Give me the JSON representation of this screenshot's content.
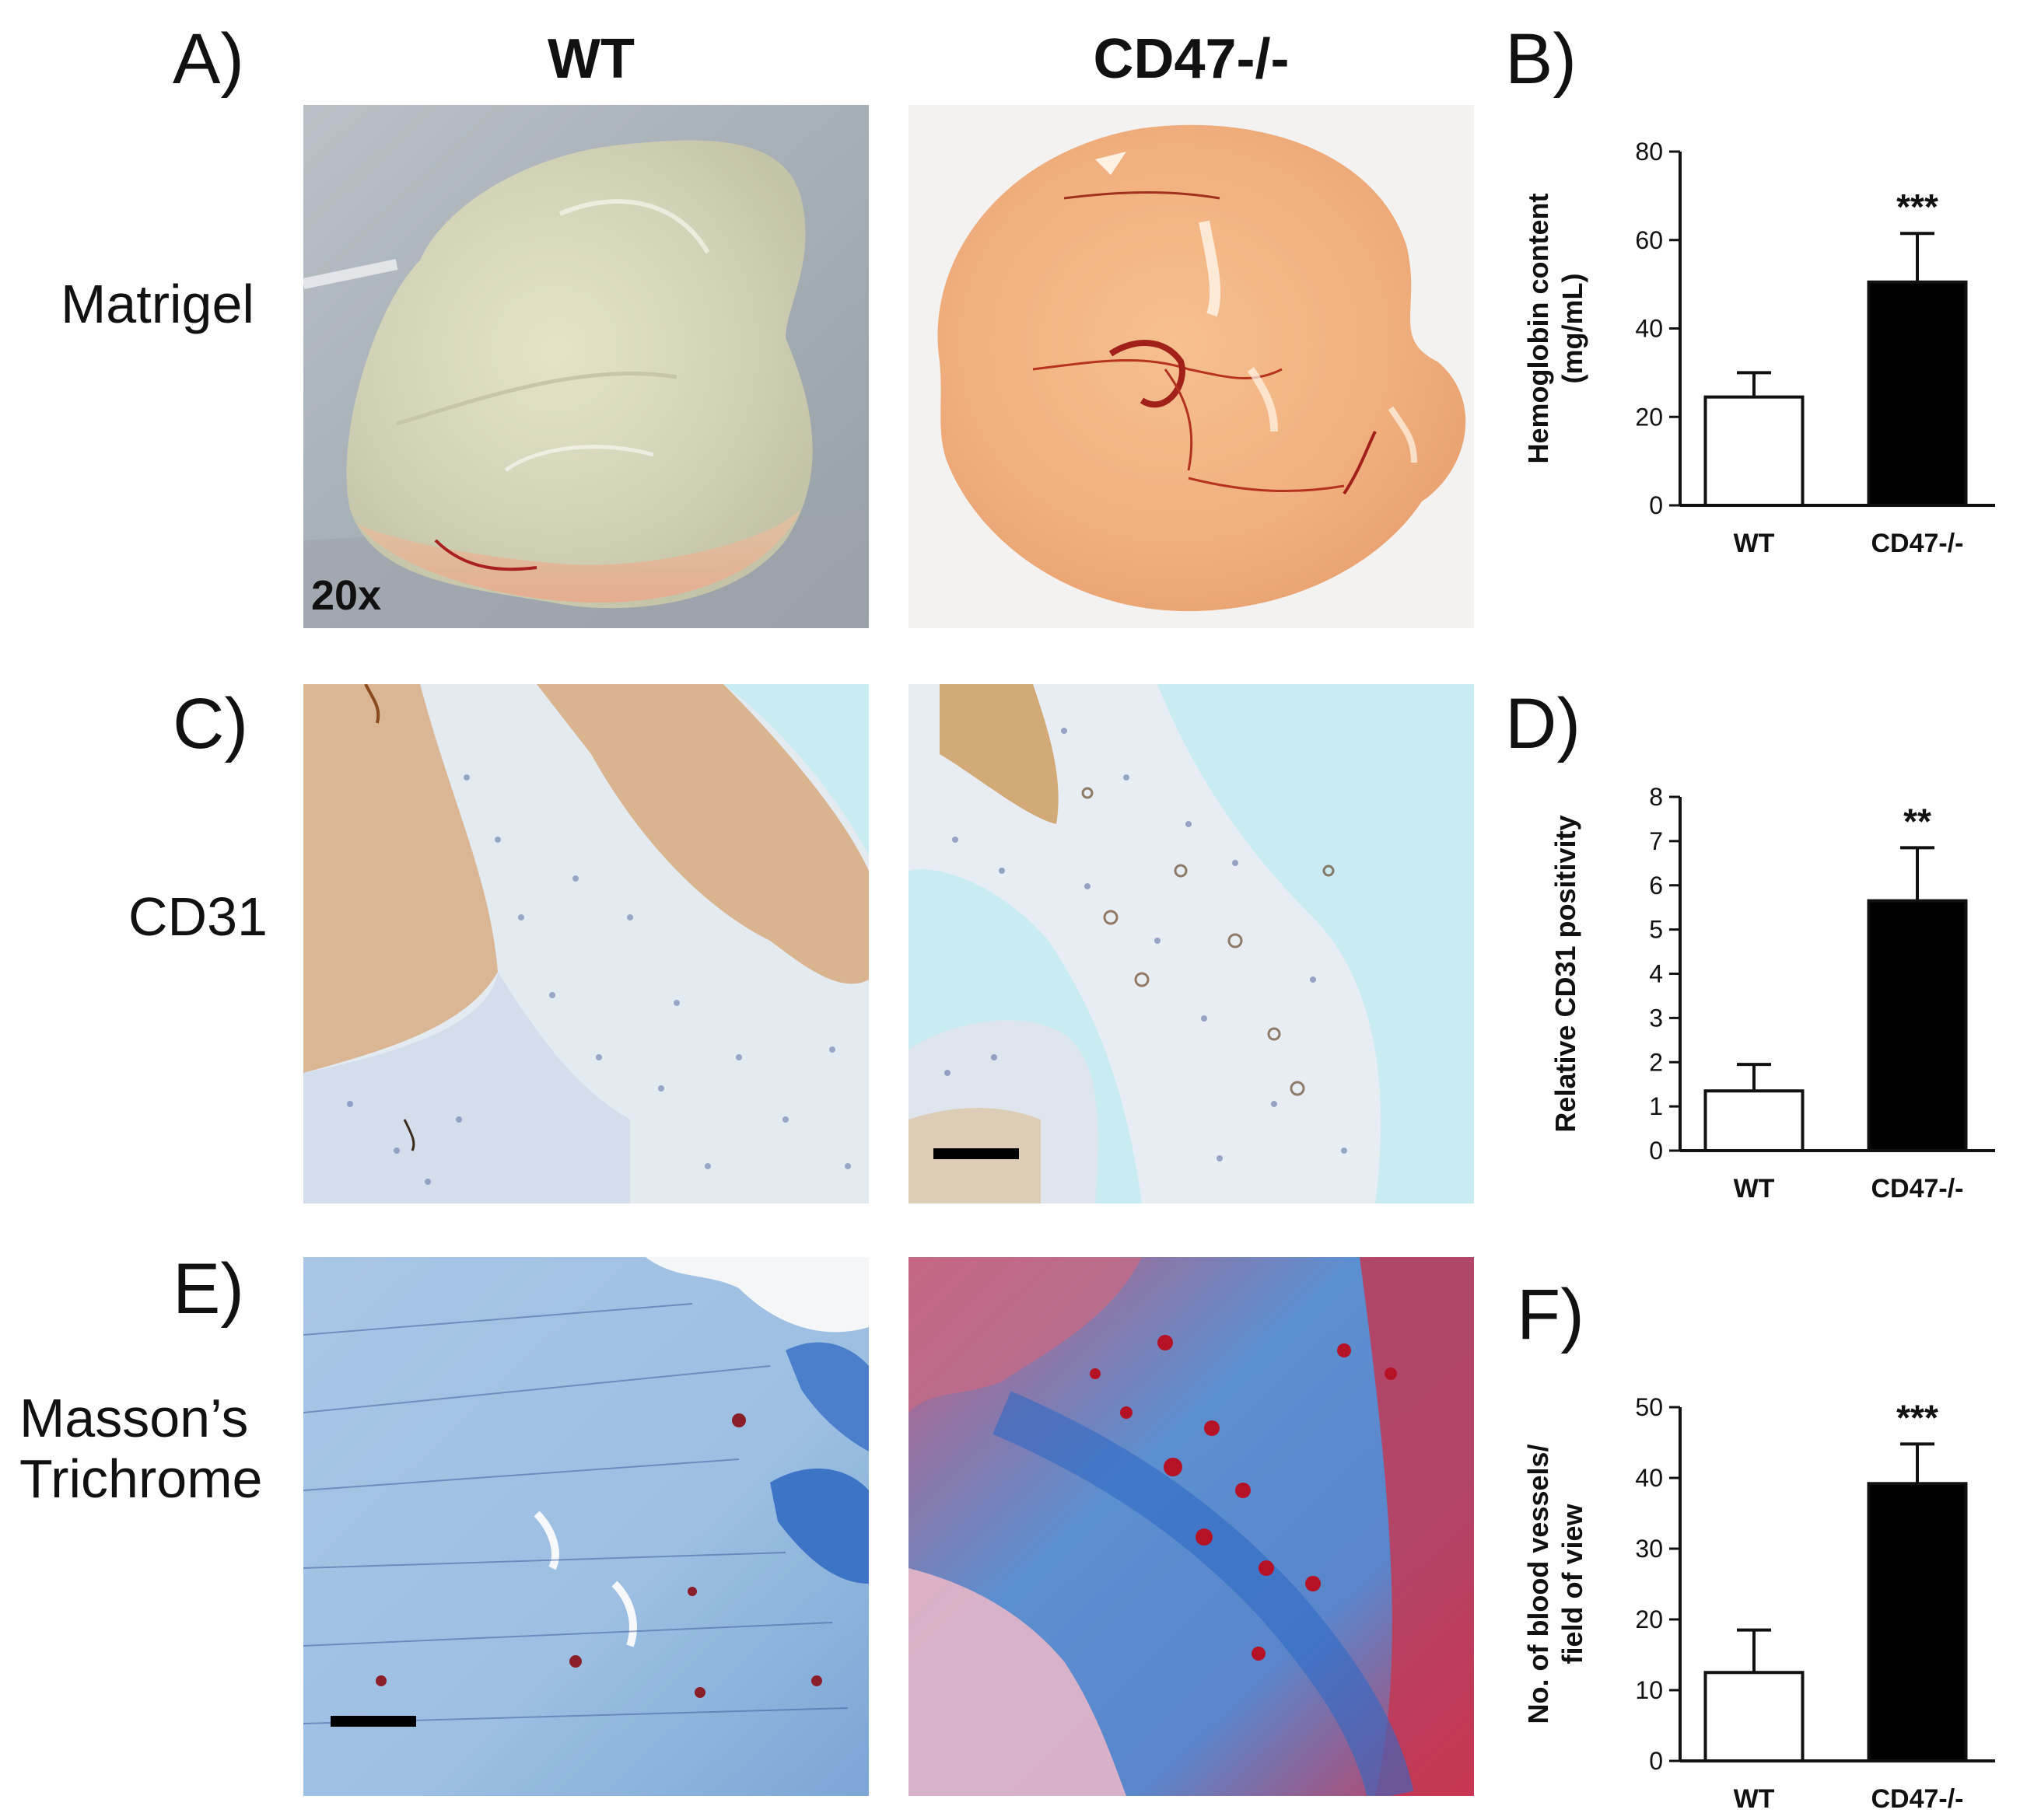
{
  "panels": {
    "A": "A)",
    "B": "B)",
    "C": "C)",
    "D": "D)",
    "E": "E)",
    "F": "F)"
  },
  "columns": {
    "wt": "WT",
    "ko": "CD47-/-"
  },
  "rows": {
    "matrigel": "Matrigel",
    "cd31": "CD31",
    "masson_line1": "Masson’s",
    "masson_line2": "Trichrome"
  },
  "magnification": "20x",
  "colors": {
    "ko_bar": "#000000",
    "wt_bar": "#ffffff",
    "axis": "#111111"
  },
  "chart_data": [
    {
      "id": "B",
      "type": "bar",
      "title": "",
      "categories": [
        "WT",
        "CD47-/-"
      ],
      "values": [
        24.5,
        50.5
      ],
      "errors": [
        5.5,
        11
      ],
      "ylabel_lines": [
        "Hemoglobin content",
        "(mg/mL)"
      ],
      "ylim": [
        0,
        80
      ],
      "yticks": [
        0,
        20,
        40,
        60,
        80
      ],
      "significance": [
        "",
        "***"
      ]
    },
    {
      "id": "D",
      "type": "bar",
      "title": "",
      "categories": [
        "WT",
        "CD47-/-"
      ],
      "values": [
        1.35,
        5.65
      ],
      "errors": [
        0.6,
        1.2
      ],
      "ylabel_lines": [
        "Relative CD31 positivity"
      ],
      "ylim": [
        0,
        8
      ],
      "yticks": [
        0,
        1,
        2,
        3,
        4,
        5,
        6,
        7,
        8
      ],
      "significance": [
        "",
        "**"
      ]
    },
    {
      "id": "F",
      "type": "bar",
      "title": "",
      "categories": [
        "WT",
        "CD47-/-"
      ],
      "values": [
        12.5,
        39.2
      ],
      "errors": [
        6,
        5.6
      ],
      "ylabel_lines": [
        "No. of blood vessels/",
        "field of view"
      ],
      "ylim": [
        0,
        50
      ],
      "yticks": [
        0,
        10,
        20,
        30,
        40,
        50
      ],
      "significance": [
        "",
        "***"
      ]
    }
  ]
}
